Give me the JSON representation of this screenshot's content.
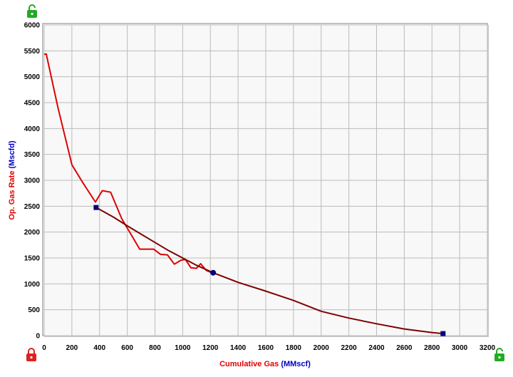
{
  "chart_data": {
    "type": "line",
    "xlabel": "Cumulative Gas",
    "xlabel_unit": "(MMscf)",
    "ylabel": "Op. Gas Rate",
    "ylabel_unit": "(Mscfd)",
    "xlim": [
      0,
      3200
    ],
    "ylim": [
      0,
      6000
    ],
    "x_ticks": [
      0,
      200,
      400,
      600,
      800,
      1000,
      1200,
      1400,
      1600,
      1800,
      2000,
      2200,
      2400,
      2600,
      2800,
      3000,
      3200
    ],
    "y_ticks": [
      0,
      500,
      1000,
      1500,
      2000,
      2500,
      3000,
      3500,
      4000,
      4500,
      5000,
      5500,
      6000
    ],
    "grid": true,
    "colors": {
      "data_line": "#e00000",
      "fit_line": "#800000",
      "markers": "#000080",
      "x_title": "#e00000",
      "x_unit": "#0000c0",
      "y_title": "#e00000",
      "y_unit": "#0000c0",
      "plot_background": "#f8f8f8",
      "grid": "#bbbbbb"
    },
    "series": [
      {
        "kind": "data",
        "points": [
          [
            0,
            5430
          ],
          [
            15,
            5440
          ],
          [
            100,
            4400
          ],
          [
            200,
            3300
          ],
          [
            280,
            2950
          ],
          [
            370,
            2580
          ],
          [
            420,
            2800
          ],
          [
            480,
            2770
          ],
          [
            560,
            2260
          ],
          [
            690,
            1670
          ],
          [
            790,
            1670
          ],
          [
            840,
            1570
          ],
          [
            890,
            1560
          ],
          [
            940,
            1380
          ],
          [
            990,
            1460
          ],
          [
            1020,
            1470
          ],
          [
            1060,
            1310
          ],
          [
            1100,
            1300
          ],
          [
            1130,
            1390
          ],
          [
            1170,
            1260
          ],
          [
            1215,
            1210
          ]
        ]
      },
      {
        "kind": "decline-fit",
        "points": [
          [
            375,
            2475
          ],
          [
            500,
            2290
          ],
          [
            600,
            2120
          ],
          [
            700,
            1960
          ],
          [
            800,
            1800
          ],
          [
            900,
            1640
          ],
          [
            1000,
            1500
          ],
          [
            1100,
            1360
          ],
          [
            1220,
            1215
          ],
          [
            1400,
            1030
          ],
          [
            1600,
            860
          ],
          [
            1800,
            680
          ],
          [
            2000,
            470
          ],
          [
            2200,
            340
          ],
          [
            2400,
            230
          ],
          [
            2600,
            130
          ],
          [
            2800,
            60
          ],
          [
            2880,
            40
          ]
        ]
      }
    ],
    "markers": [
      {
        "shape": "square",
        "x": 375,
        "y": 2475
      },
      {
        "shape": "circle",
        "x": 1220,
        "y": 1215
      },
      {
        "shape": "square",
        "x": 2880,
        "y": 40
      }
    ]
  },
  "lock_icons": [
    {
      "name": "lock-top-left-icon",
      "state": "unlocked",
      "color": "#22aa22"
    },
    {
      "name": "lock-bottom-left-icon",
      "state": "locked",
      "color": "#dd2222"
    },
    {
      "name": "lock-bottom-right-icon",
      "state": "unlocked",
      "color": "#22aa22"
    }
  ]
}
